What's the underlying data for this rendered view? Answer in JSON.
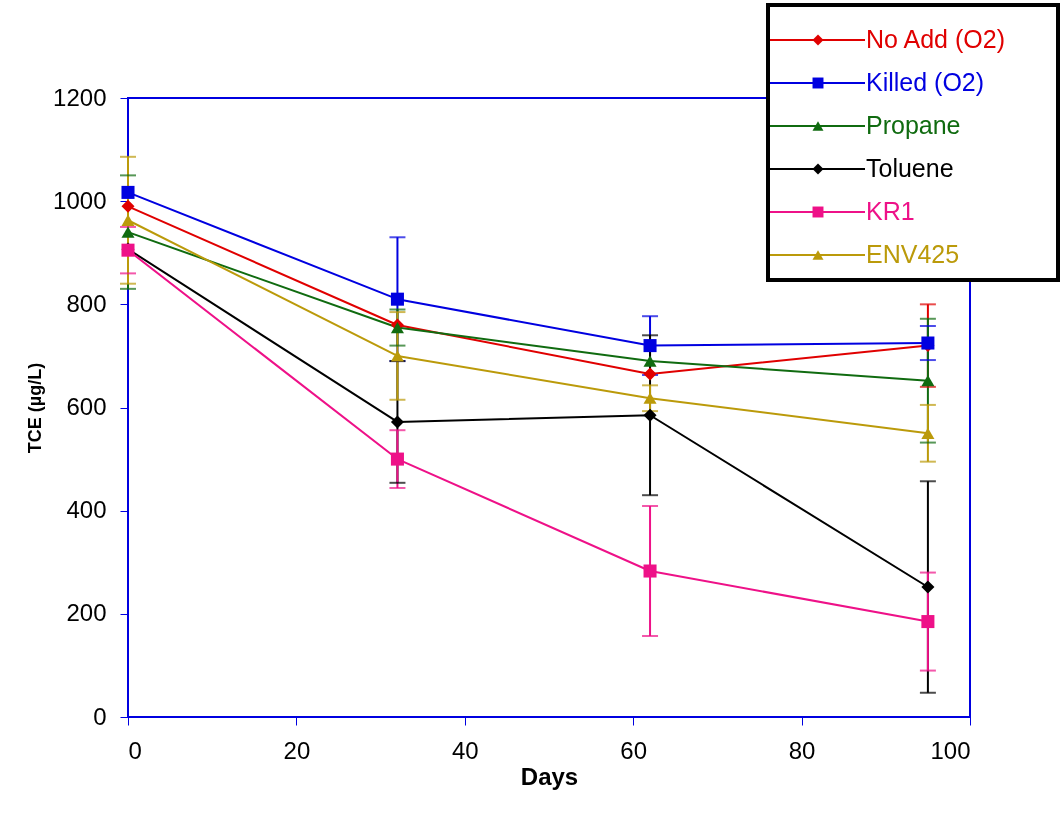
{
  "chart_data": {
    "type": "line",
    "xlabel": "Days",
    "ylabel": "TCE (µg/L)",
    "x": [
      0,
      32,
      62,
      95
    ],
    "xlim": [
      0,
      100
    ],
    "xticks": [
      0,
      20,
      40,
      60,
      80,
      100
    ],
    "ylim": [
      0,
      1200
    ],
    "yticks": [
      0,
      200,
      400,
      600,
      800,
      1000,
      1200
    ],
    "grid": false,
    "legend": "top right",
    "line_style": "solid",
    "series": [
      {
        "name": "No Add (O2)",
        "color": "#e00000",
        "marker": "diamond",
        "values": [
          990,
          760,
          665,
          720
        ],
        "errors": [
          null,
          null,
          null,
          80
        ]
      },
      {
        "name": "Killed (O2)",
        "color": "#0000e0",
        "marker": "square",
        "values": [
          1017,
          810,
          720,
          725
        ],
        "errors": [
          null,
          120,
          57,
          33
        ]
      },
      {
        "name": "Propane",
        "color": "#106b10",
        "marker": "triangle",
        "values": [
          940,
          755,
          690,
          652
        ],
        "errors": [
          110,
          35,
          null,
          120
        ]
      },
      {
        "name": "Toluene",
        "color": "#000000",
        "marker": "diamond",
        "values": [
          907,
          572,
          585,
          252
        ],
        "errors": [
          null,
          118,
          155,
          205
        ]
      },
      {
        "name": "KR1",
        "color": "#ee1188",
        "marker": "square",
        "values": [
          905,
          500,
          283,
          185
        ],
        "errors": [
          45,
          56,
          126,
          95
        ]
      },
      {
        "name": "ENV425",
        "color": "#bb9a0a",
        "marker": "triangle",
        "values": [
          963,
          700,
          618,
          550
        ],
        "errors": [
          123,
          85,
          25,
          55
        ]
      }
    ]
  }
}
